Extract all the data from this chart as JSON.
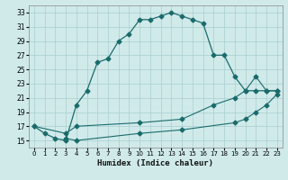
{
  "xlabel": "Humidex (Indice chaleur)",
  "background_color": "#d0eaea",
  "line_color": "#1a6b6b",
  "xlim": [
    -0.5,
    23.5
  ],
  "ylim": [
    14.0,
    34.0
  ],
  "yticks": [
    15,
    17,
    19,
    21,
    23,
    25,
    27,
    29,
    31,
    33
  ],
  "xticks": [
    0,
    1,
    2,
    3,
    4,
    5,
    6,
    7,
    8,
    9,
    10,
    11,
    12,
    13,
    14,
    15,
    16,
    17,
    18,
    19,
    20,
    21,
    22,
    23
  ],
  "line1_x": [
    0,
    1,
    2,
    3,
    4,
    5,
    6,
    7,
    8,
    9,
    10,
    11,
    12,
    13,
    14,
    15,
    16,
    17,
    18,
    19,
    20,
    21,
    22,
    23
  ],
  "line1_y": [
    17,
    16,
    15.3,
    15,
    20,
    22,
    26,
    26.5,
    29,
    30,
    32,
    32,
    32.5,
    33,
    32.5,
    32,
    31.5,
    27,
    27,
    24,
    22,
    22,
    22,
    22
  ],
  "line2_x": [
    0,
    3,
    4,
    10,
    14,
    17,
    19,
    20,
    21,
    22,
    23
  ],
  "line2_y": [
    17,
    16,
    17,
    17.5,
    18,
    20,
    21,
    22,
    24,
    22,
    22
  ],
  "line3_x": [
    3,
    4,
    10,
    14,
    19,
    20,
    21,
    22,
    23
  ],
  "line3_y": [
    15.3,
    15,
    16,
    16.5,
    17.5,
    18,
    19,
    20,
    21.5
  ],
  "grid_color": "#a8cece",
  "markersize": 2.5
}
